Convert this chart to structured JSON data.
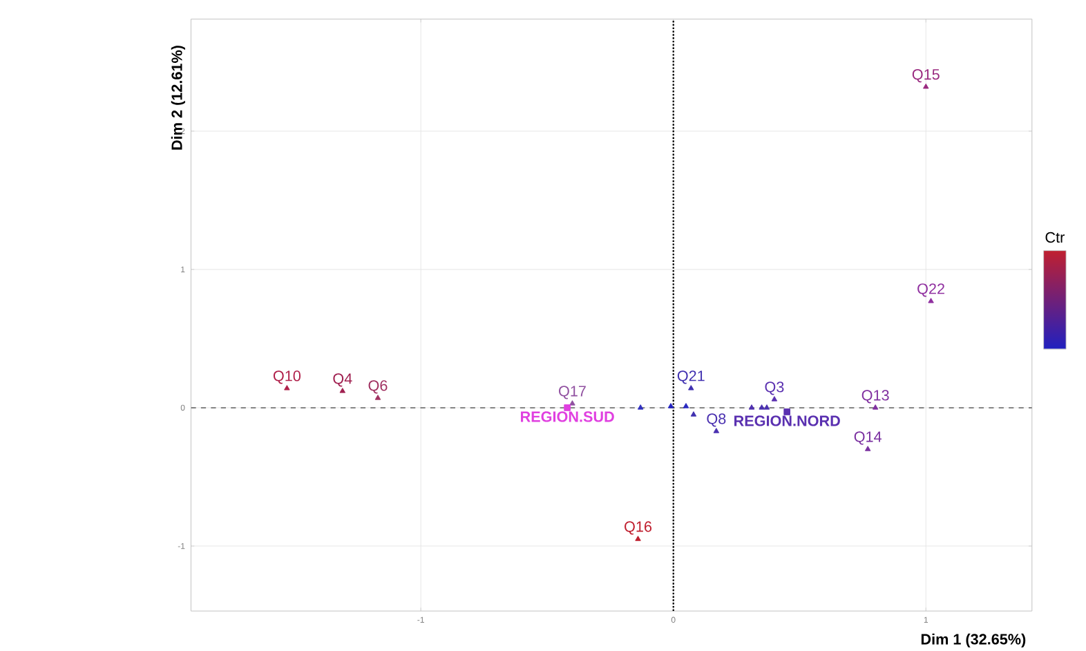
{
  "chart_data": {
    "type": "scatter",
    "xlabel": "Dim 1 (32.65%)",
    "ylabel": "Dim 2 (12.61%)",
    "clabel": "Ctr",
    "xlim": [
      -1.91,
      1.42
    ],
    "ylim": [
      -1.47,
      2.81
    ],
    "xticks": [
      -1,
      0,
      1
    ],
    "yticks": [
      -1,
      0,
      1,
      2
    ],
    "grid": true,
    "series": [
      {
        "marker": "triangle",
        "x": [
          -1.53,
          -1.31,
          -1.17,
          -0.14,
          -0.4,
          -0.13,
          -0.01,
          0.05,
          0.07,
          0.08,
          0.17,
          0.31,
          0.35,
          0.37,
          0.4,
          0.8,
          0.77,
          1.0,
          1.02
        ],
        "values": [
          0.14,
          0.12,
          0.07,
          -0.95,
          0.03,
          0.0,
          0.01,
          0.01,
          0.14,
          -0.05,
          -0.17,
          0.0,
          0.0,
          0.0,
          0.06,
          0.0,
          -0.3,
          2.32,
          0.77
        ],
        "colors": [
          "#b0204a",
          "#a02050",
          "#a03060",
          "#c02030",
          "#9050a0",
          "#3030c0",
          "#2020c0",
          "#2828c0",
          "#4030b0",
          "#4030b0",
          "#4a30b0",
          "#5030b0",
          "#4a30b0",
          "#4a30b0",
          "#5a30b0",
          "#8030a0",
          "#7a30a0",
          "#9a2a80",
          "#9030a0"
        ]
      },
      {
        "marker": "square",
        "x": [
          -0.42,
          0.45
        ],
        "values": [
          0.0,
          -0.03
        ],
        "colors": [
          "#e040e0",
          "#5a30b0"
        ]
      }
    ],
    "annotations": [
      {
        "text": "Q10",
        "x": -1.53,
        "y": 0.14
      },
      {
        "text": "Q4",
        "x": -1.31,
        "y": 0.12
      },
      {
        "text": "Q6",
        "x": -1.17,
        "y": 0.07
      },
      {
        "text": "Q17",
        "x": -0.4,
        "y": 0.03
      },
      {
        "text": "REGION.SUD",
        "x": -0.42,
        "y": 0.0
      },
      {
        "text": "Q21",
        "x": 0.07,
        "y": 0.14
      },
      {
        "text": "Q3",
        "x": 0.4,
        "y": 0.06
      },
      {
        "text": "Q13",
        "x": 0.8,
        "y": 0.0
      },
      {
        "text": "REGION.NORD",
        "x": 0.45,
        "y": -0.03
      },
      {
        "text": "Q8",
        "x": 0.17,
        "y": -0.17
      },
      {
        "text": "Q14",
        "x": 0.77,
        "y": -0.3
      },
      {
        "text": "Q15",
        "x": 1.0,
        "y": 2.32
      },
      {
        "text": "Q22",
        "x": 1.02,
        "y": 0.77
      },
      {
        "text": "Q16",
        "x": -0.14,
        "y": -0.95
      }
    ],
    "ref_lines": [
      {
        "axis": "x",
        "value": 0,
        "line_style": "dotted"
      },
      {
        "axis": "y",
        "value": 0,
        "line_style": "dashed"
      }
    ]
  }
}
